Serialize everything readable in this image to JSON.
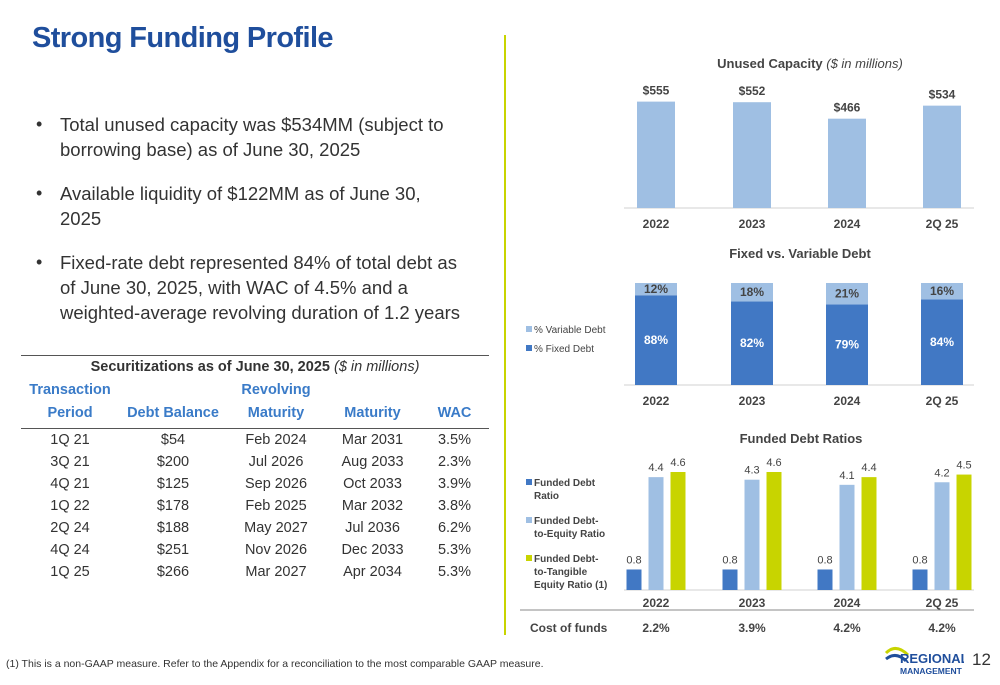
{
  "title": "Strong Funding Profile",
  "bullets": [
    "Total unused capacity was $534MM (subject to borrowing base) as of June 30, 2025",
    "Available liquidity of $122MM as of June 30, 2025",
    "Fixed-rate debt represented 84% of total debt as of June 30, 2025, with WAC of 4.5% and a weighted-average revolving duration of 1.2 years"
  ],
  "securitizations": {
    "title": "Securitizations as of June 30, 2025",
    "unit": "($ in millions)",
    "headers": [
      "Transaction Period",
      "Debt Balance",
      "Revolving Maturity",
      "Maturity",
      "WAC"
    ],
    "rows": [
      [
        "1Q 21",
        "$54",
        "Feb 2024",
        "Mar 2031",
        "3.5%"
      ],
      [
        "3Q 21",
        "$200",
        "Jul 2026",
        "Aug 2033",
        "2.3%"
      ],
      [
        "4Q 21",
        "$125",
        "Sep 2026",
        "Oct 2033",
        "3.9%"
      ],
      [
        "1Q 22",
        "$178",
        "Feb 2025",
        "Mar 2032",
        "3.8%"
      ],
      [
        "2Q 24",
        "$188",
        "May 2027",
        "Jul 2036",
        "6.2%"
      ],
      [
        "4Q 24",
        "$251",
        "Nov 2026",
        "Dec 2033",
        "5.3%"
      ],
      [
        "1Q 25",
        "$266",
        "Mar 2027",
        "Apr 2034",
        "5.3%"
      ]
    ]
  },
  "chart_data": [
    {
      "type": "bar",
      "title": "Unused Capacity",
      "subtitle": "($ in millions)",
      "categories": [
        "2022",
        "2023",
        "2024",
        "2Q 25"
      ],
      "values": [
        555,
        552,
        466,
        534
      ],
      "labels": [
        "$555",
        "$552",
        "$466",
        "$534"
      ],
      "colors": {
        "bar": "#9fbfe3"
      },
      "grid": false
    },
    {
      "type": "bar",
      "stacked": true,
      "percent": true,
      "title": "Fixed vs. Variable Debt",
      "categories": [
        "2022",
        "2023",
        "2024",
        "2Q 25"
      ],
      "series": [
        {
          "name": "% Fixed Debt",
          "values": [
            88,
            82,
            79,
            84
          ],
          "labels": [
            "88%",
            "82%",
            "79%",
            "84%"
          ],
          "color": "#4178c4"
        },
        {
          "name": "% Variable Debt",
          "values": [
            12,
            18,
            21,
            16
          ],
          "labels": [
            "12%",
            "18%",
            "21%",
            "16%"
          ],
          "color": "#9fbfe3"
        }
      ],
      "legend": [
        "% Variable Debt",
        "% Fixed Debt"
      ],
      "legend_position": "left",
      "grid": false
    },
    {
      "type": "bar",
      "title": "Funded Debt Ratios",
      "categories": [
        "2022",
        "2023",
        "2024",
        "2Q 25"
      ],
      "series": [
        {
          "name": "Funded Debt Ratio",
          "values": [
            0.8,
            0.8,
            0.8,
            0.8
          ],
          "labels": [
            "0.8",
            "0.8",
            "0.8",
            "0.8"
          ],
          "color": "#4178c4",
          "legend_lines": [
            "Funded Debt",
            "Ratio"
          ]
        },
        {
          "name": "Funded Debt-to-Equity Ratio",
          "values": [
            4.4,
            4.3,
            4.1,
            4.2
          ],
          "labels": [
            "4.4",
            "4.3",
            "4.1",
            "4.2"
          ],
          "color": "#9fbfe3",
          "legend_lines": [
            "Funded Debt-",
            "to-Equity Ratio"
          ]
        },
        {
          "name": "Funded Debt-to-Tangible Equity Ratio (1)",
          "values": [
            4.6,
            4.6,
            4.4,
            4.5
          ],
          "labels": [
            "4.6",
            "4.6",
            "4.4",
            "4.5"
          ],
          "color": "#c8d400",
          "legend_lines": [
            "Funded Debt-",
            "to-Tangible",
            "Equity Ratio (1)"
          ]
        }
      ],
      "legend_position": "left",
      "grid": false
    }
  ],
  "cost_of_funds": {
    "label": "Cost of funds",
    "values": [
      "2.2%",
      "3.9%",
      "4.2%",
      "4.2%"
    ]
  },
  "footnote": "(1) This is a non-GAAP measure. Refer to the Appendix for a reconciliation to the most comparable GAAP measure.",
  "logo": {
    "line1": "REGIONAL",
    "line2": "MANAGEMENT"
  },
  "page_number": "12",
  "colors": {
    "title": "#1f4e9c",
    "accent_rule": "#c8d400",
    "header_text": "#3a7bc8"
  }
}
